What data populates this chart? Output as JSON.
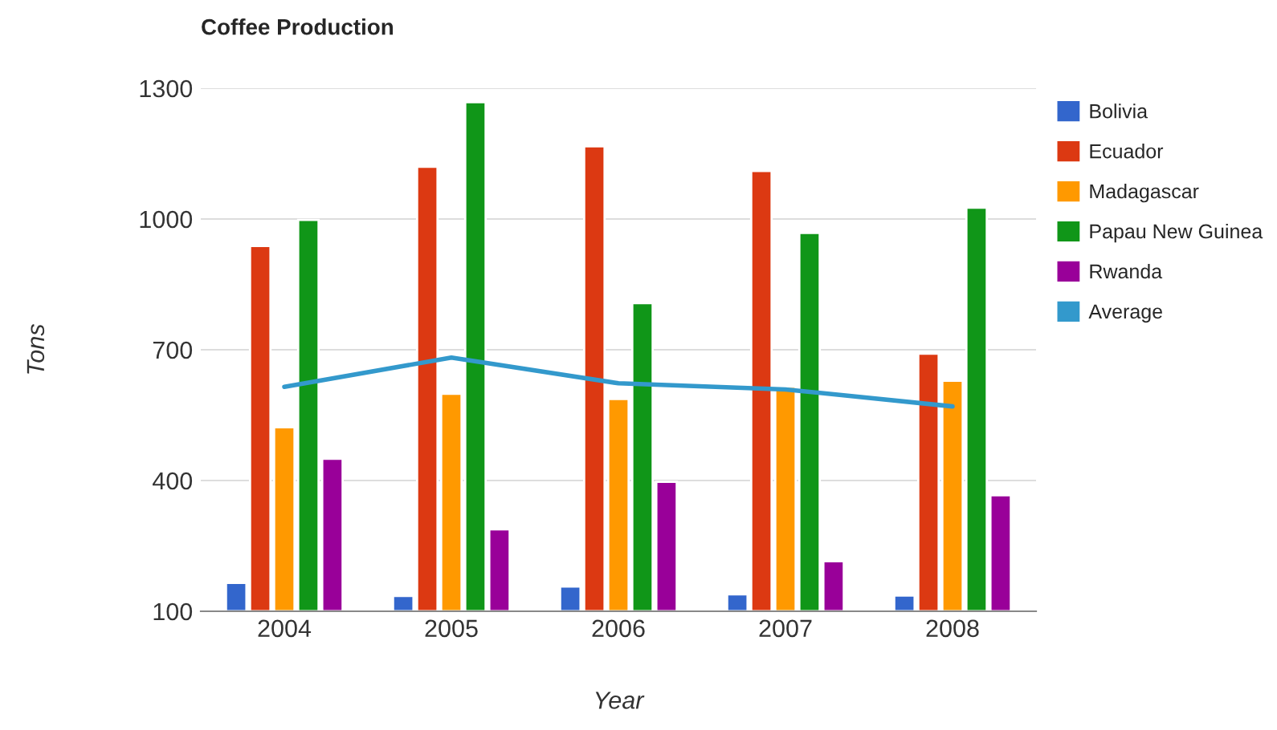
{
  "chart_data": {
    "type": "bar",
    "title": "Coffee Production",
    "xlabel": "Year",
    "ylabel": "Tons",
    "categories": [
      "2004",
      "2005",
      "2006",
      "2007",
      "2008"
    ],
    "series": [
      {
        "name": "Bolivia",
        "color": "#3366cc",
        "values": [
          165,
          135,
          157,
          139,
          136
        ]
      },
      {
        "name": "Ecuador",
        "color": "#dc3912",
        "values": [
          938,
          1120,
          1167,
          1110,
          691
        ]
      },
      {
        "name": "Madagascar",
        "color": "#ff9900",
        "values": [
          522,
          599,
          587,
          615,
          629
        ]
      },
      {
        "name": "Papau New Guinea",
        "color": "#109618",
        "values": [
          998,
          1268,
          807,
          968,
          1026
        ]
      },
      {
        "name": "Rwanda",
        "color": "#990099",
        "values": [
          450,
          288,
          397,
          215,
          366
        ]
      },
      {
        "name": "Average",
        "color": "#3399cc",
        "type": "line",
        "values": [
          615,
          682,
          623,
          609,
          570
        ]
      }
    ],
    "ylim": [
      100,
      1300
    ],
    "yticks": [
      100,
      400,
      700,
      1000,
      1300
    ],
    "grid": "y",
    "legend": "right",
    "marker": "none",
    "line_style": "solid"
  }
}
